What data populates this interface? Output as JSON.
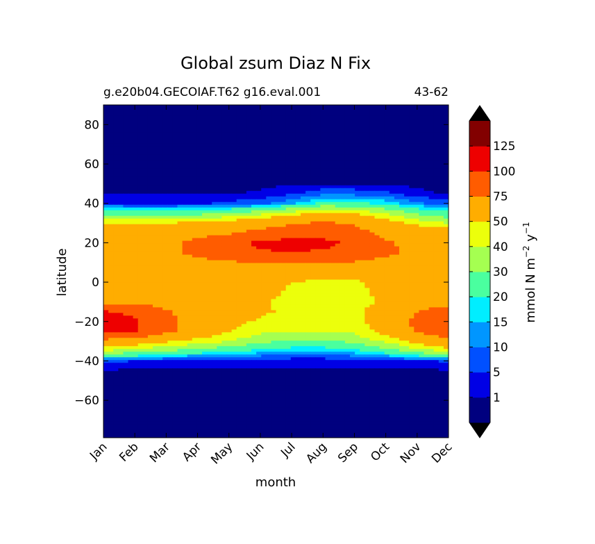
{
  "chart_data": {
    "type": "contourf",
    "title": "Global zsum Diaz N Fix",
    "subtitle_left": "g.e20b04.GECOIAF.T62 g16.eval.001",
    "subtitle_right": "43-62",
    "xlabel": "month",
    "ylabel": "latitude",
    "months": [
      "Jan",
      "Feb",
      "Mar",
      "Apr",
      "May",
      "Jun",
      "Jul",
      "Aug",
      "Sep",
      "Oct",
      "Nov",
      "Dec"
    ],
    "xlim": [
      1,
      12
    ],
    "ylim": [
      -79,
      90
    ],
    "yticks": [
      80,
      60,
      40,
      20,
      0,
      -20,
      -40,
      -60
    ],
    "ytick_labels": [
      "80",
      "60",
      "40",
      "20",
      "0",
      "−20",
      "−40",
      "−60"
    ],
    "colorbar": {
      "label_main": "mmol N m",
      "label_exp1": "−2",
      "label_mid": " y",
      "label_exp2": "−1",
      "levels": [
        0,
        1,
        5,
        10,
        15,
        20,
        30,
        40,
        50,
        75,
        100,
        125,
        150
      ],
      "tick_labels": [
        "1",
        "5",
        "10",
        "15",
        "20",
        "30",
        "40",
        "50",
        "75",
        "100",
        "125"
      ],
      "colors": [
        "#00007f",
        "#0000e5",
        "#0050ff",
        "#0096ff",
        "#00eeff",
        "#4aff9f",
        "#a5ff51",
        "#ecff0b",
        "#ffad00",
        "#ff5c00",
        "#ee0000",
        "#820000"
      ],
      "extend_low_color": "#000000",
      "extend_high_color": "#000000"
    },
    "lat_grid": [
      -79,
      -60,
      -50,
      -45,
      -40,
      -35,
      -30,
      -25,
      -20,
      -15,
      -10,
      -5,
      0,
      5,
      10,
      15,
      20,
      25,
      30,
      35,
      40,
      45,
      50,
      60,
      70,
      90
    ],
    "field": [
      [
        0,
        0,
        0,
        0,
        0,
        0,
        0,
        0,
        0,
        0,
        0,
        0
      ],
      [
        0,
        0,
        0,
        0,
        0,
        0,
        0,
        0,
        0,
        0,
        0,
        0
      ],
      [
        0,
        0,
        0,
        0,
        0,
        0,
        0,
        0,
        0,
        0,
        0,
        0
      ],
      [
        0.5,
        0.5,
        0.5,
        0.5,
        0.5,
        0.5,
        0.5,
        0.5,
        0.5,
        0.5,
        0.5,
        0.5
      ],
      [
        6,
        5,
        4,
        3,
        2.5,
        2,
        2,
        2,
        2,
        3,
        4,
        6
      ],
      [
        40,
        35,
        30,
        25,
        22,
        18,
        15,
        15,
        18,
        25,
        35,
        42
      ],
      [
        68,
        60,
        52,
        46,
        40,
        33,
        28,
        28,
        33,
        42,
        55,
        68
      ],
      [
        108,
        102,
        80,
        62,
        50,
        42,
        40,
        40,
        42,
        55,
        78,
        92
      ],
      [
        110,
        104,
        82,
        63,
        55,
        48,
        45,
        45,
        46,
        58,
        80,
        93
      ],
      [
        102,
        95,
        78,
        62,
        57,
        52,
        48,
        46,
        48,
        56,
        75,
        88
      ],
      [
        65,
        68,
        66,
        60,
        56,
        52,
        45,
        42,
        44,
        53,
        62,
        64
      ],
      [
        60,
        62,
        60,
        58,
        57,
        55,
        48,
        44,
        46,
        55,
        58,
        58
      ],
      [
        58,
        58,
        58,
        58,
        58,
        55,
        50,
        47,
        48,
        55,
        58,
        58
      ],
      [
        60,
        60,
        60,
        62,
        62,
        62,
        60,
        60,
        60,
        60,
        60,
        60
      ],
      [
        62,
        62,
        65,
        68,
        72,
        76,
        78,
        78,
        74,
        68,
        64,
        62
      ],
      [
        64,
        65,
        70,
        80,
        92,
        98,
        100,
        98,
        92,
        80,
        68,
        64
      ],
      [
        66,
        66,
        70,
        80,
        94,
        104,
        106,
        104,
        98,
        78,
        68,
        66
      ],
      [
        64,
        64,
        66,
        68,
        72,
        82,
        92,
        95,
        85,
        66,
        64,
        62
      ],
      [
        48,
        48,
        50,
        52,
        57,
        64,
        72,
        78,
        72,
        58,
        46,
        40
      ],
      [
        25,
        24,
        25,
        26,
        30,
        36,
        44,
        52,
        48,
        38,
        28,
        22
      ],
      [
        5,
        4,
        4,
        4,
        6,
        8,
        14,
        22,
        22,
        18,
        11,
        7
      ],
      [
        0.5,
        0.5,
        0.5,
        0.5,
        0.8,
        1.5,
        4,
        8,
        8,
        6,
        2,
        0.5
      ],
      [
        0,
        0,
        0,
        0,
        0,
        0,
        0.5,
        0.8,
        0.8,
        0,
        0,
        0
      ],
      [
        0,
        0,
        0,
        0,
        0,
        0,
        0,
        0,
        0,
        0,
        0,
        0
      ],
      [
        0,
        0,
        0,
        0,
        0,
        0,
        0,
        0,
        0,
        0,
        0,
        0
      ],
      [
        0,
        0,
        0,
        0,
        0,
        0,
        0,
        0,
        0,
        0,
        0,
        0
      ]
    ]
  }
}
